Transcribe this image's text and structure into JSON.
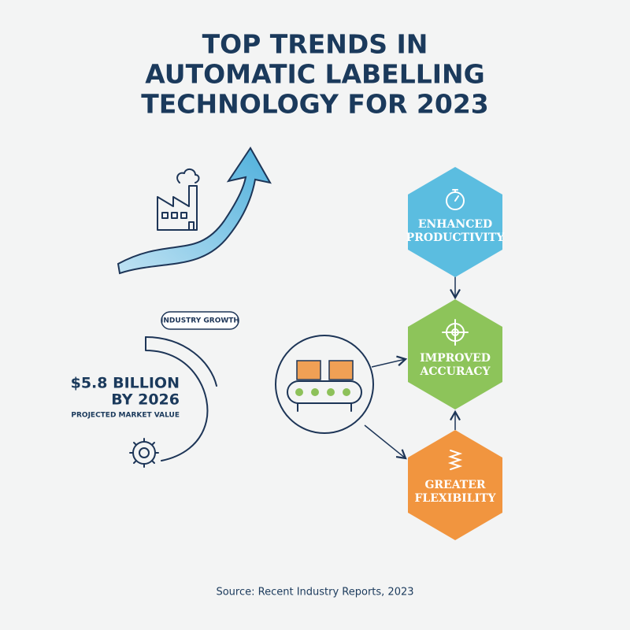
{
  "title": [
    "TOP TRENDS IN",
    "AUTOMATIC LABELLING",
    "TECHNOLOGY FOR 2023"
  ],
  "growth": {
    "label": "INDUSTRY GROWTH",
    "value_lines": [
      "$5.8 BILLION",
      "BY 2026"
    ],
    "caption": "PROJECTED MARKET VALUE"
  },
  "trends": [
    {
      "lines": [
        "ENHANCED",
        "PRODUCTIVITY"
      ]
    },
    {
      "lines": [
        "IMPROVED",
        "ACCURACY"
      ]
    },
    {
      "lines": [
        "GREATER",
        "FLEXIBILITY"
      ]
    }
  ],
  "source": "Source: Recent Industry Reports, 2023"
}
